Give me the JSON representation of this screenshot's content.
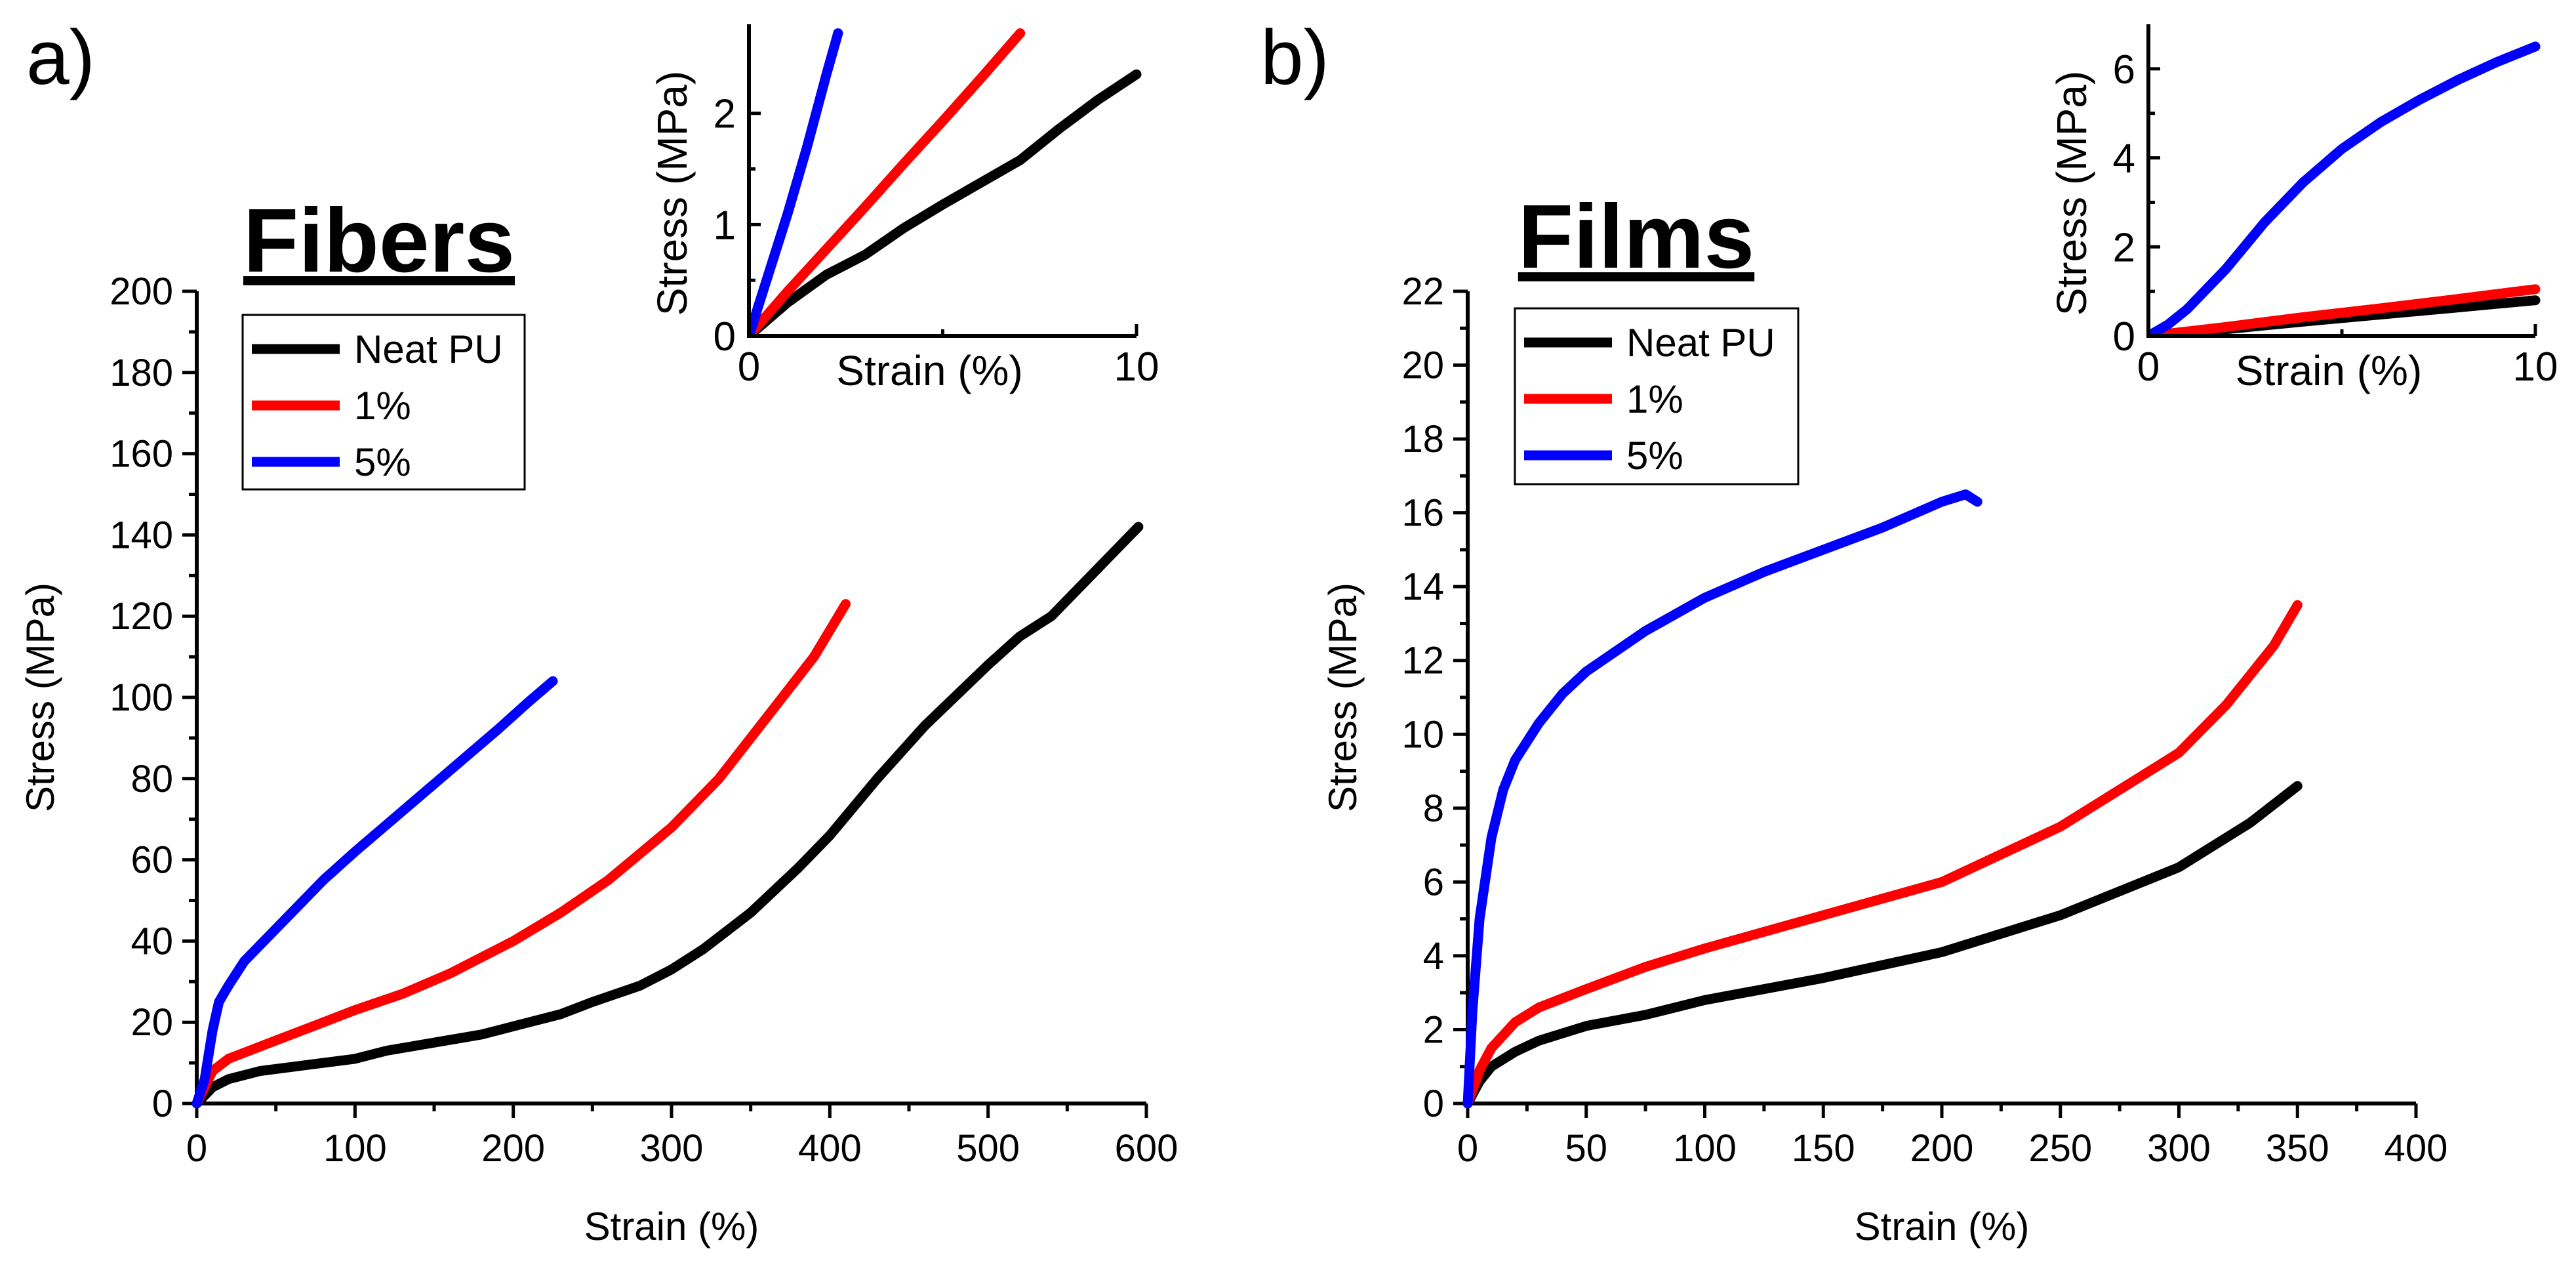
{
  "chart_data": [
    {
      "id": "a",
      "panel_label": "a)",
      "title": "Fibers",
      "type": "line",
      "xlabel": "Strain (%)",
      "ylabel": "Stress (MPa)",
      "xlim": [
        0,
        600
      ],
      "ylim": [
        0,
        200
      ],
      "xticks": [
        0,
        100,
        200,
        300,
        400,
        500,
        600
      ],
      "yticks": [
        0,
        20,
        40,
        60,
        80,
        100,
        120,
        140,
        160,
        180,
        200
      ],
      "legend": "top-left",
      "grid": false,
      "series": [
        {
          "name": "Neat PU",
          "color": "#000000",
          "x": [
            0,
            5,
            10,
            20,
            40,
            60,
            80,
            100,
            120,
            150,
            180,
            200,
            230,
            250,
            280,
            300,
            320,
            350,
            380,
            400,
            430,
            460,
            500,
            520,
            540,
            560,
            580,
            595
          ],
          "y": [
            0,
            2,
            4,
            6,
            8,
            9,
            10,
            11,
            13,
            15,
            17,
            19,
            22,
            25,
            29,
            33,
            38,
            47,
            58,
            66,
            80,
            93,
            108,
            115,
            120,
            128,
            136,
            142
          ]
        },
        {
          "name": "1%",
          "color": "#ff0000",
          "x": [
            0,
            5,
            10,
            20,
            40,
            60,
            80,
            100,
            130,
            160,
            200,
            230,
            260,
            300,
            330,
            360,
            390,
            410
          ],
          "y": [
            0,
            4,
            8,
            11,
            14,
            17,
            20,
            23,
            27,
            32,
            40,
            47,
            55,
            68,
            80,
            95,
            110,
            123
          ]
        },
        {
          "name": "5%",
          "color": "#0000ff",
          "x": [
            0,
            5,
            10,
            14,
            20,
            30,
            50,
            80,
            100,
            130,
            160,
            190,
            210,
            225
          ],
          "y": [
            0,
            6,
            18,
            25,
            29,
            35,
            43,
            55,
            62,
            72,
            82,
            92,
            99,
            104
          ]
        }
      ],
      "inset": {
        "xlabel": "Strain (%)",
        "ylabel": "Stress (MPa)",
        "xlim": [
          0,
          10
        ],
        "ylim": [
          0,
          2.8
        ],
        "xticks": [
          0,
          10
        ],
        "yticks": [
          0,
          1,
          2
        ],
        "series": [
          {
            "name": "Neat PU",
            "color": "#000000",
            "x": [
              0,
              1,
              2,
              3,
              4,
              5,
              6,
              7,
              8,
              9,
              10
            ],
            "y": [
              0,
              0.3,
              0.55,
              0.73,
              0.97,
              1.18,
              1.38,
              1.58,
              1.86,
              2.12,
              2.35
            ]
          },
          {
            "name": "1%",
            "color": "#ff0000",
            "x": [
              0,
              1,
              2,
              3,
              4,
              5,
              6,
              7
            ],
            "y": [
              0,
              0.4,
              0.78,
              1.16,
              1.55,
              1.93,
              2.32,
              2.72
            ]
          },
          {
            "name": "5%",
            "color": "#0000ff",
            "x": [
              0,
              0.5,
              1,
              1.5,
              2,
              2.3
            ],
            "y": [
              0,
              0.55,
              1.1,
              1.7,
              2.35,
              2.72
            ]
          }
        ]
      }
    },
    {
      "id": "b",
      "panel_label": "b)",
      "title": "Films",
      "type": "line",
      "xlabel": "Strain (%)",
      "ylabel": "Stress (MPa)",
      "xlim": [
        0,
        400
      ],
      "ylim": [
        0,
        22
      ],
      "xticks": [
        0,
        50,
        100,
        150,
        200,
        250,
        300,
        350,
        400
      ],
      "yticks": [
        0,
        2,
        4,
        6,
        8,
        10,
        12,
        14,
        16,
        18,
        20,
        22
      ],
      "legend": "top-left",
      "grid": false,
      "series": [
        {
          "name": "Neat PU",
          "color": "#000000",
          "x": [
            0,
            5,
            10,
            20,
            30,
            50,
            75,
            100,
            150,
            200,
            250,
            300,
            330,
            350
          ],
          "y": [
            0,
            0.6,
            1.0,
            1.4,
            1.7,
            2.1,
            2.4,
            2.8,
            3.4,
            4.1,
            5.1,
            6.4,
            7.6,
            8.6
          ]
        },
        {
          "name": "1%",
          "color": "#ff0000",
          "x": [
            0,
            5,
            10,
            20,
            30,
            50,
            75,
            100,
            150,
            200,
            250,
            300,
            320,
            340,
            350
          ],
          "y": [
            0,
            0.9,
            1.5,
            2.2,
            2.6,
            3.1,
            3.7,
            4.2,
            5.1,
            6.0,
            7.5,
            9.5,
            10.8,
            12.4,
            13.5
          ]
        },
        {
          "name": "5%",
          "color": "#0000ff",
          "x": [
            0,
            2,
            5,
            10,
            15,
            20,
            30,
            40,
            50,
            75,
            100,
            125,
            150,
            175,
            200,
            210,
            215
          ],
          "y": [
            0,
            2.5,
            5.0,
            7.2,
            8.5,
            9.3,
            10.3,
            11.1,
            11.7,
            12.8,
            13.7,
            14.4,
            15.0,
            15.6,
            16.3,
            16.5,
            16.3
          ]
        }
      ],
      "inset": {
        "xlabel": "Strain (%)",
        "ylabel": "Stress (MPa)",
        "xlim": [
          0,
          10
        ],
        "ylim": [
          0,
          7
        ],
        "xticks": [
          0,
          10
        ],
        "yticks": [
          0,
          2,
          4,
          6
        ],
        "series": [
          {
            "name": "Neat PU",
            "color": "#000000",
            "x": [
              0,
              2,
              4,
              6,
              8,
              10
            ],
            "y": [
              0,
              0.15,
              0.32,
              0.48,
              0.64,
              0.8
            ]
          },
          {
            "name": "1%",
            "color": "#ff0000",
            "x": [
              0,
              2,
              4,
              6,
              8,
              10
            ],
            "y": [
              0,
              0.2,
              0.42,
              0.62,
              0.83,
              1.05
            ]
          },
          {
            "name": "5%",
            "color": "#0000ff",
            "x": [
              0,
              0.5,
              1,
              2,
              3,
              4,
              5,
              6,
              7,
              8,
              9,
              10
            ],
            "y": [
              0,
              0.25,
              0.6,
              1.5,
              2.55,
              3.45,
              4.2,
              4.8,
              5.3,
              5.75,
              6.15,
              6.5
            ]
          }
        ]
      }
    }
  ]
}
